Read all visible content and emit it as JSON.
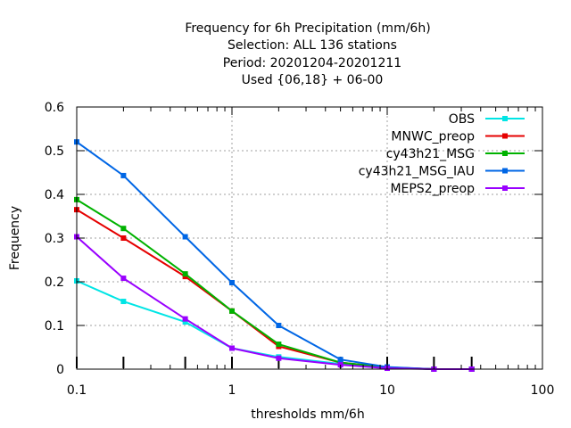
{
  "chart_data": {
    "type": "line",
    "title_lines": [
      "Frequency  for 6h Precipitation (mm/6h)",
      "Selection: ALL    136 stations",
      "Period: 20201204-20201211",
      "Used {06,18} + 06-00"
    ],
    "xlabel": "thresholds mm/6h",
    "ylabel": "Frequency",
    "x_scale": "log",
    "xlim": [
      0.1,
      100
    ],
    "ylim": [
      0,
      0.6
    ],
    "x_ticks": [
      0.1,
      1,
      10,
      100
    ],
    "x_tick_labels": [
      "0.1",
      "1",
      "10",
      "100"
    ],
    "y_ticks": [
      0,
      0.1,
      0.2,
      0.3,
      0.4,
      0.5,
      0.6
    ],
    "y_tick_labels": [
      "0",
      "0.1",
      "0.2",
      "0.3",
      "0.4",
      "0.5",
      "0.6"
    ],
    "grid": true,
    "legend_position": "top-right",
    "threshold_marks": [
      0.1,
      0.2,
      0.5,
      1,
      2,
      5,
      10,
      20,
      35
    ],
    "x": [
      0.1,
      0.2,
      0.5,
      1,
      2,
      5,
      10,
      20,
      35
    ],
    "series": [
      {
        "name": "OBS",
        "color": "#00e5e5",
        "values": [
          0.202,
          0.155,
          0.108,
          0.048,
          0.028,
          0.012,
          0.003,
          0.0,
          0.0
        ]
      },
      {
        "name": "MNWC_preop",
        "color": "#e50000",
        "values": [
          0.365,
          0.3,
          0.212,
          0.133,
          0.052,
          0.015,
          0.004,
          0.0,
          0.0
        ]
      },
      {
        "name": "cy43h21_MSG",
        "color": "#00b200",
        "values": [
          0.388,
          0.322,
          0.218,
          0.133,
          0.057,
          0.015,
          0.004,
          0.0,
          0.0
        ]
      },
      {
        "name": "cy43h21_MSG_IAU",
        "color": "#0066e5",
        "values": [
          0.52,
          0.443,
          0.303,
          0.198,
          0.1,
          0.022,
          0.005,
          0.0,
          0.0
        ]
      },
      {
        "name": "MEPS2_preop",
        "color": "#9900ff",
        "values": [
          0.303,
          0.208,
          0.115,
          0.048,
          0.025,
          0.01,
          0.002,
          0.0,
          0.0
        ]
      }
    ]
  }
}
